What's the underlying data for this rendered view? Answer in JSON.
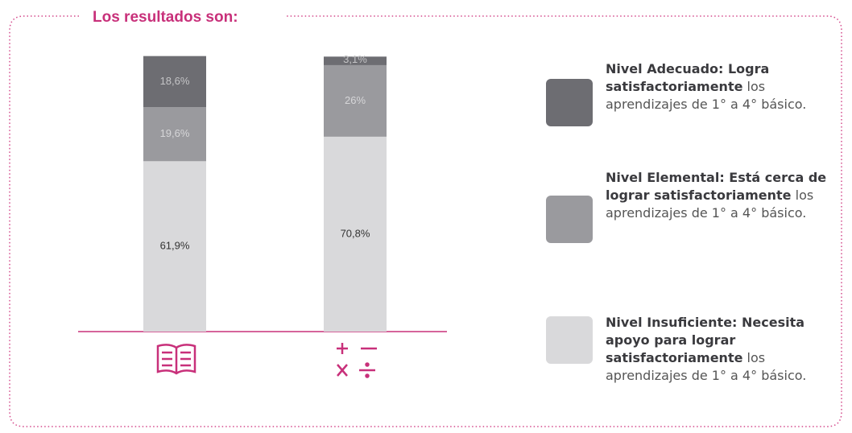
{
  "chart_data": {
    "type": "stacked-bar",
    "title": "Los resultados son:",
    "categories": [
      null,
      null
    ],
    "ylim": [
      0,
      100
    ],
    "series": [
      {
        "name": "Nivel Insuficiente: Necesita apoyo para lograr satisfactoriamente",
        "description": "los aprendizajes de 1° a 4° básico.",
        "color": "#d9d9db",
        "label_color": "#333333",
        "values": [
          61.9,
          70.8
        ],
        "value_labels": [
          "61,9%",
          "70,8%"
        ]
      },
      {
        "name": "Nivel Elemental: Está cerca de lograr satisfactoriamente",
        "description": "los aprendizajes de 1° a 4° básico.",
        "color": "#9a9a9e",
        "label_color": "#d6d6d8",
        "values": [
          19.6,
          26
        ],
        "value_labels": [
          "19,6%",
          "26%"
        ]
      },
      {
        "name": "Nivel Adecuado: Logra satisfactoriamente",
        "description": "los aprendizajes de 1° a 4° básico.",
        "color": "#6d6d72",
        "label_color": "#c4c4c6",
        "values": [
          18.6,
          3.1
        ],
        "value_labels": [
          "18,6%",
          "3,1%"
        ]
      }
    ]
  }
}
